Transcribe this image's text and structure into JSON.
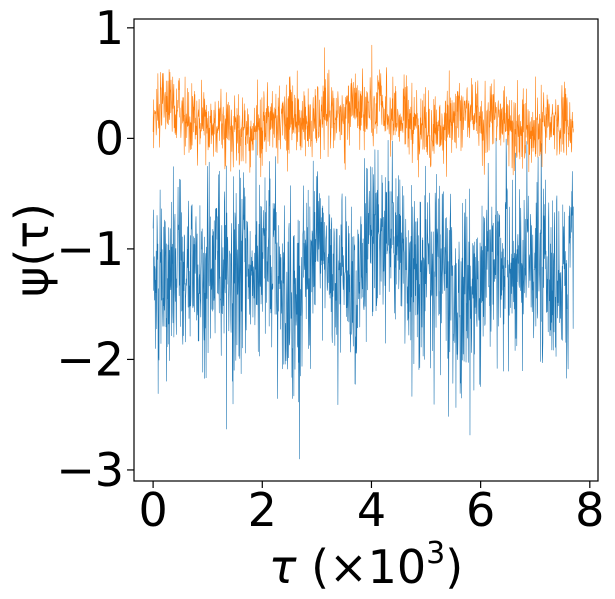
{
  "chart_data": {
    "type": "line",
    "xlabel": "τ (×10",
    "xlabel_sup": "3",
    "xlabel_close": ")",
    "ylabel": "ψ(τ)",
    "xlim": [
      -0.35,
      8.15
    ],
    "ylim": [
      -3.1,
      1.08
    ],
    "xticks": [
      0,
      2,
      4,
      6,
      8
    ],
    "xtick_labels": [
      "0",
      "2",
      "4",
      "6",
      "8"
    ],
    "yticks": [
      1,
      0,
      -1,
      -2,
      -3
    ],
    "ytick_labels": [
      "1",
      "0",
      "−1",
      "−2",
      "−3"
    ],
    "grid": false,
    "legend": "none",
    "series": [
      {
        "color": "#1f77b4",
        "x_range": [
          0,
          7.7
        ],
        "n_points": 1500,
        "mean": -1.2,
        "envelope_min": -2.9,
        "envelope_max": 0.1
      },
      {
        "color": "#ff7f0e",
        "x_range": [
          0,
          7.7
        ],
        "n_points": 1500,
        "mean": 0.15,
        "envelope_min": -0.35,
        "envelope_max": 0.87
      }
    ]
  }
}
